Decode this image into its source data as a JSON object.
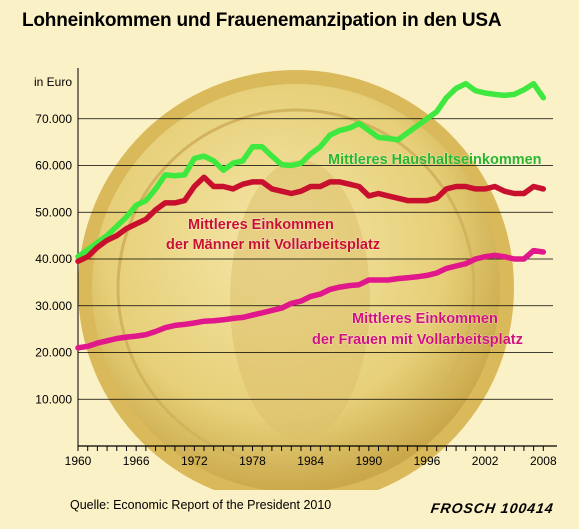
{
  "title": "Lohneinkommen und Frauenemanzipation in den USA",
  "source": "Quelle: Economic Report of the President 2010",
  "signature": "FROSCH 100414",
  "chart_data": {
    "type": "line",
    "ylabel": "in Euro",
    "xlim": [
      1960,
      2009
    ],
    "ylim": [
      0,
      80000
    ],
    "yticks": [
      {
        "value": 10000,
        "label": "10.000"
      },
      {
        "value": 20000,
        "label": "20.000"
      },
      {
        "value": 30000,
        "label": "30.000"
      },
      {
        "value": 40000,
        "label": "40.000"
      },
      {
        "value": 50000,
        "label": "50.000"
      },
      {
        "value": 60000,
        "label": "60.000"
      },
      {
        "value": 70000,
        "label": "70.000"
      }
    ],
    "xticks": [
      {
        "value": 1960,
        "label": "1960"
      },
      {
        "value": 1966,
        "label": "1966"
      },
      {
        "value": 1972,
        "label": "1972"
      },
      {
        "value": 1978,
        "label": "1978"
      },
      {
        "value": 1984,
        "label": "1984"
      },
      {
        "value": 1990,
        "label": "1990"
      },
      {
        "value": 1996,
        "label": "1996"
      },
      {
        "value": 2002,
        "label": "2002"
      },
      {
        "value": 2008,
        "label": "2008"
      }
    ],
    "grid": "horizontal",
    "series": [
      {
        "name": "Mittleres Haushaltseinkommen",
        "label_lines": [
          "Mittleres Haushaltseinkommen"
        ],
        "color": "#3ee83e",
        "label_color": "#2ab52a",
        "x": [
          1960,
          1961,
          1962,
          1963,
          1964,
          1965,
          1966,
          1967,
          1968,
          1969,
          1970,
          1971,
          1972,
          1973,
          1974,
          1975,
          1976,
          1977,
          1978,
          1979,
          1980,
          1981,
          1982,
          1983,
          1984,
          1985,
          1986,
          1987,
          1988,
          1989,
          1990,
          1991,
          1992,
          1993,
          1994,
          1995,
          1996,
          1997,
          1998,
          1999,
          2000,
          2001,
          2002,
          2003,
          2004,
          2005,
          2006,
          2007,
          2008
        ],
        "y": [
          40500,
          42000,
          43500,
          45000,
          47000,
          49000,
          51500,
          52500,
          55000,
          58000,
          57800,
          58000,
          61500,
          62000,
          61000,
          59000,
          60500,
          61000,
          64000,
          64000,
          62000,
          60200,
          60000,
          60500,
          62500,
          64000,
          66500,
          67500,
          68000,
          69000,
          67500,
          66000,
          65800,
          65500,
          67000,
          68500,
          70000,
          71500,
          74500,
          76500,
          77500,
          76000,
          75500,
          75200,
          75000,
          75200,
          76200,
          77500,
          74500
        ]
      },
      {
        "name": "Mittleres Einkommen der Männer mit Vollarbeitsplatz",
        "label_lines": [
          "Mittleres Einkommen",
          "der Männer mit Vollarbeitsplatz"
        ],
        "color": "#c8102e",
        "label_color": "#c8102e",
        "x": [
          1960,
          1961,
          1962,
          1963,
          1964,
          1965,
          1966,
          1967,
          1968,
          1969,
          1970,
          1971,
          1972,
          1973,
          1974,
          1975,
          1976,
          1977,
          1978,
          1979,
          1980,
          1981,
          1982,
          1983,
          1984,
          1985,
          1986,
          1987,
          1988,
          1989,
          1990,
          1991,
          1992,
          1993,
          1994,
          1995,
          1996,
          1997,
          1998,
          1999,
          2000,
          2001,
          2002,
          2003,
          2004,
          2005,
          2006,
          2007,
          2008
        ],
        "y": [
          39500,
          40500,
          42500,
          44000,
          45000,
          46500,
          47500,
          48500,
          50500,
          52000,
          52000,
          52500,
          55500,
          57500,
          55500,
          55500,
          55000,
          56000,
          56500,
          56500,
          55000,
          54500,
          54000,
          54500,
          55500,
          55500,
          56500,
          56500,
          56000,
          55500,
          53500,
          54000,
          53500,
          53000,
          52500,
          52500,
          52500,
          53000,
          55000,
          55500,
          55500,
          55000,
          55000,
          55500,
          54500,
          54000,
          54000,
          55500,
          55000
        ]
      },
      {
        "name": "Mittleres Einkommen der Frauen mit Vollarbeitsplatz",
        "label_lines": [
          "Mittleres Einkommen",
          "der Frauen mit Vollarbeitsplatz"
        ],
        "color": "#e0188c",
        "label_color": "#d0107c",
        "x": [
          1960,
          1961,
          1962,
          1963,
          1964,
          1965,
          1966,
          1967,
          1968,
          1969,
          1970,
          1971,
          1972,
          1973,
          1974,
          1975,
          1976,
          1977,
          1978,
          1979,
          1980,
          1981,
          1982,
          1983,
          1984,
          1985,
          1986,
          1987,
          1988,
          1989,
          1990,
          1991,
          1992,
          1993,
          1994,
          1995,
          1996,
          1997,
          1998,
          1999,
          2000,
          2001,
          2002,
          2003,
          2004,
          2005,
          2006,
          2007,
          2008
        ],
        "y": [
          21000,
          21300,
          22000,
          22500,
          23000,
          23300,
          23500,
          23800,
          24500,
          25300,
          25800,
          26000,
          26300,
          26700,
          26800,
          27000,
          27300,
          27500,
          28000,
          28500,
          29000,
          29500,
          30500,
          31000,
          32000,
          32500,
          33500,
          34000,
          34300,
          34500,
          35500,
          35500,
          35500,
          35800,
          36000,
          36200,
          36500,
          37000,
          38000,
          38500,
          39000,
          40000,
          40500,
          40800,
          40500,
          40000,
          40000,
          41800,
          41500
        ]
      }
    ]
  }
}
